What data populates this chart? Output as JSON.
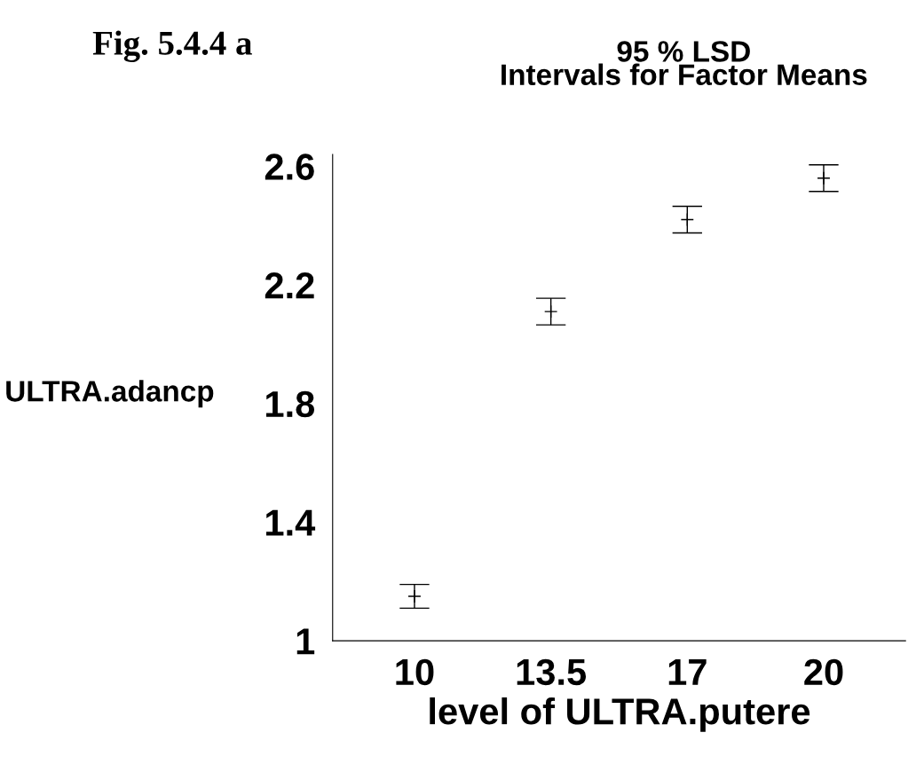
{
  "chart_data": {
    "type": "scatter",
    "title": "95 % LSD\nIntervals for Factor Means",
    "xlabel": "level of ULTRA.putere",
    "ylabel": "ULTRA.adancp",
    "annotations": [
      "Fig. 5.4.4 a"
    ],
    "categories": [
      "10",
      "13.5",
      "17",
      "20"
    ],
    "series": [
      {
        "color": "#000000",
        "values": [
          1.15,
          2.11,
          2.42,
          2.56
        ],
        "errors": [
          0.04,
          0.045,
          0.045,
          0.045
        ]
      }
    ],
    "ylim": [
      1,
      2.64
    ],
    "yticks": [
      1,
      1.4,
      1.8,
      2.2,
      2.6
    ],
    "grid": false,
    "marker": "cross",
    "legend": false
  }
}
